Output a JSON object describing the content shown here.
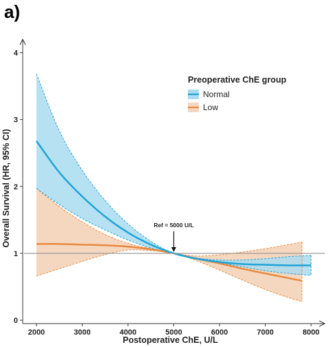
{
  "panel_label": "a)",
  "chart_data": {
    "type": "line",
    "title": "",
    "xlabel": "Postoperative ChE, U/L",
    "ylabel": "Overall Survival (HR, 95% CI)",
    "xlim": [
      1700,
      8300
    ],
    "ylim": [
      -0.05,
      4.2
    ],
    "xticks": [
      2000,
      3000,
      4000,
      5000,
      6000,
      7000,
      8000
    ],
    "yticks": [
      0,
      1,
      2,
      3,
      4
    ],
    "reference_line": 1,
    "annotation": {
      "text": "Ref = 5000 U/L",
      "x": 5000,
      "y": 1
    },
    "legend": {
      "title": "Preoperative ChE group",
      "position": "top-right"
    },
    "series": [
      {
        "name": "Normal",
        "color": "#1fa3d6",
        "fill": "#a9dcf0",
        "x": [
          2000,
          2500,
          3000,
          3500,
          4000,
          4500,
          5000,
          5500,
          6000,
          6500,
          7000,
          7500,
          8000
        ],
        "y": [
          2.68,
          2.21,
          1.85,
          1.55,
          1.31,
          1.13,
          1.0,
          0.92,
          0.87,
          0.84,
          0.83,
          0.82,
          0.82
        ],
        "lower": [
          1.97,
          1.73,
          1.52,
          1.35,
          1.2,
          1.08,
          1.0,
          0.93,
          0.86,
          0.8,
          0.74,
          0.7,
          0.67
        ],
        "upper": [
          3.68,
          2.83,
          2.24,
          1.79,
          1.44,
          1.18,
          1.0,
          0.93,
          0.9,
          0.9,
          0.92,
          0.95,
          0.97
        ]
      },
      {
        "name": "Low",
        "color": "#e8893f",
        "fill": "#f5d7bf",
        "x": [
          2000,
          2500,
          3000,
          3500,
          4000,
          4500,
          5000,
          5500,
          6000,
          6500,
          7000,
          7500,
          7800
        ],
        "y": [
          1.14,
          1.14,
          1.13,
          1.12,
          1.1,
          1.06,
          1.0,
          0.92,
          0.85,
          0.77,
          0.7,
          0.63,
          0.59
        ],
        "lower": [
          0.66,
          0.77,
          0.88,
          0.98,
          1.05,
          1.04,
          1.0,
          0.89,
          0.75,
          0.6,
          0.46,
          0.34,
          0.28
        ],
        "upper": [
          1.97,
          1.7,
          1.47,
          1.28,
          1.15,
          1.07,
          1.0,
          0.96,
          0.98,
          1.02,
          1.07,
          1.13,
          1.17
        ]
      }
    ]
  }
}
